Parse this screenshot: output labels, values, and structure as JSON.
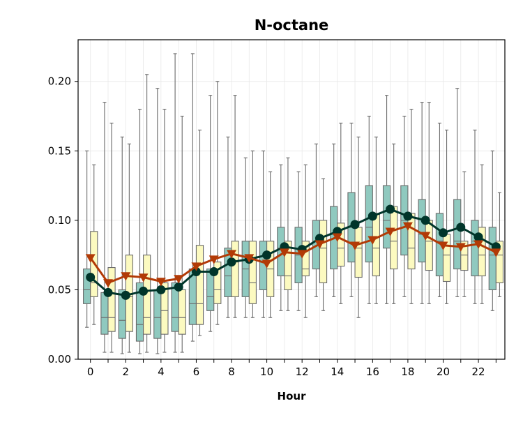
{
  "chart_data": {
    "type": "box",
    "title": "N-octane",
    "xlabel": "Hour",
    "ylabel": "",
    "ylim": [
      0.0,
      0.23
    ],
    "xlim": [
      -0.7,
      23.5
    ],
    "xticks": [
      0,
      2,
      4,
      6,
      8,
      10,
      12,
      14,
      16,
      18,
      20,
      22
    ],
    "xtick_labels": [
      "0",
      "2",
      "4",
      "6",
      "8",
      "10",
      "12",
      "14",
      "16",
      "18",
      "20",
      "22"
    ],
    "yticks": [
      0.0,
      0.05,
      0.1,
      0.15,
      0.2
    ],
    "ytick_labels": [
      "0.00",
      "0.05",
      "0.10",
      "0.15",
      "0.20"
    ],
    "grid": true,
    "colors": {
      "box_a_fill": "#8fc9bf",
      "box_b_fill": "#fcfac0",
      "box_edge": "#6b6b6b",
      "line_a": "#00352a",
      "line_b": "#b23a06",
      "grid": "#e8e8e8"
    },
    "hours": [
      0,
      1,
      2,
      3,
      4,
      5,
      6,
      7,
      8,
      9,
      10,
      11,
      12,
      13,
      14,
      15,
      16,
      17,
      18,
      19,
      20,
      21,
      22,
      23
    ],
    "box_series": [
      {
        "offset": -0.2,
        "color_key": "box_a_fill",
        "boxes": [
          {
            "wlo": 0.023,
            "q1": 0.04,
            "med": 0.05,
            "q3": 0.065,
            "whi": 0.15
          },
          {
            "wlo": 0.005,
            "q1": 0.018,
            "med": 0.03,
            "q3": 0.048,
            "whi": 0.185
          },
          {
            "wlo": 0.004,
            "q1": 0.015,
            "med": 0.028,
            "q3": 0.05,
            "whi": 0.16
          },
          {
            "wlo": 0.004,
            "q1": 0.013,
            "med": 0.025,
            "q3": 0.055,
            "whi": 0.18
          },
          {
            "wlo": 0.004,
            "q1": 0.015,
            "med": 0.03,
            "q3": 0.05,
            "whi": 0.195
          },
          {
            "wlo": 0.005,
            "q1": 0.02,
            "med": 0.03,
            "q3": 0.055,
            "whi": 0.22
          },
          {
            "wlo": 0.013,
            "q1": 0.025,
            "med": 0.04,
            "q3": 0.065,
            "whi": 0.22
          },
          {
            "wlo": 0.02,
            "q1": 0.035,
            "med": 0.045,
            "q3": 0.065,
            "whi": 0.19
          },
          {
            "wlo": 0.03,
            "q1": 0.045,
            "med": 0.06,
            "q3": 0.08,
            "whi": 0.16
          },
          {
            "wlo": 0.03,
            "q1": 0.045,
            "med": 0.065,
            "q3": 0.085,
            "whi": 0.145
          },
          {
            "wlo": 0.03,
            "q1": 0.05,
            "med": 0.07,
            "q3": 0.085,
            "whi": 0.15
          },
          {
            "wlo": 0.035,
            "q1": 0.06,
            "med": 0.08,
            "q3": 0.095,
            "whi": 0.14
          },
          {
            "wlo": 0.035,
            "q1": 0.055,
            "med": 0.075,
            "q3": 0.095,
            "whi": 0.135
          },
          {
            "wlo": 0.045,
            "q1": 0.065,
            "med": 0.085,
            "q3": 0.1,
            "whi": 0.155
          },
          {
            "wlo": 0.045,
            "q1": 0.065,
            "med": 0.09,
            "q3": 0.11,
            "whi": 0.155
          },
          {
            "wlo": 0.045,
            "q1": 0.07,
            "med": 0.095,
            "q3": 0.12,
            "whi": 0.17
          },
          {
            "wlo": 0.04,
            "q1": 0.07,
            "med": 0.095,
            "q3": 0.125,
            "whi": 0.175
          },
          {
            "wlo": 0.04,
            "q1": 0.08,
            "med": 0.1,
            "q3": 0.125,
            "whi": 0.19
          },
          {
            "wlo": 0.045,
            "q1": 0.075,
            "med": 0.1,
            "q3": 0.125,
            "whi": 0.175
          },
          {
            "wlo": 0.04,
            "q1": 0.07,
            "med": 0.09,
            "q3": 0.115,
            "whi": 0.185
          },
          {
            "wlo": 0.045,
            "q1": 0.06,
            "med": 0.085,
            "q3": 0.105,
            "whi": 0.17
          },
          {
            "wlo": 0.045,
            "q1": 0.065,
            "med": 0.085,
            "q3": 0.115,
            "whi": 0.195
          },
          {
            "wlo": 0.04,
            "q1": 0.06,
            "med": 0.085,
            "q3": 0.1,
            "whi": 0.165
          },
          {
            "wlo": 0.035,
            "q1": 0.05,
            "med": 0.075,
            "q3": 0.095,
            "whi": 0.15
          }
        ]
      },
      {
        "offset": 0.2,
        "color_key": "box_b_fill",
        "boxes": [
          {
            "wlo": 0.025,
            "q1": 0.045,
            "med": 0.055,
            "q3": 0.092,
            "whi": 0.14
          },
          {
            "wlo": 0.005,
            "q1": 0.02,
            "med": 0.03,
            "q3": 0.066,
            "whi": 0.17
          },
          {
            "wlo": 0.005,
            "q1": 0.02,
            "med": 0.045,
            "q3": 0.075,
            "whi": 0.155
          },
          {
            "wlo": 0.005,
            "q1": 0.018,
            "med": 0.03,
            "q3": 0.075,
            "whi": 0.205
          },
          {
            "wlo": 0.005,
            "q1": 0.018,
            "med": 0.035,
            "q3": 0.055,
            "whi": 0.18
          },
          {
            "wlo": 0.005,
            "q1": 0.018,
            "med": 0.03,
            "q3": 0.05,
            "whi": 0.175
          },
          {
            "wlo": 0.017,
            "q1": 0.025,
            "med": 0.04,
            "q3": 0.082,
            "whi": 0.165
          },
          {
            "wlo": 0.025,
            "q1": 0.04,
            "med": 0.05,
            "q3": 0.07,
            "whi": 0.2
          },
          {
            "wlo": 0.03,
            "q1": 0.045,
            "med": 0.07,
            "q3": 0.085,
            "whi": 0.19
          },
          {
            "wlo": 0.03,
            "q1": 0.04,
            "med": 0.055,
            "q3": 0.085,
            "whi": 0.15
          },
          {
            "wlo": 0.03,
            "q1": 0.045,
            "med": 0.065,
            "q3": 0.085,
            "whi": 0.135
          },
          {
            "wlo": 0.035,
            "q1": 0.05,
            "med": 0.06,
            "q3": 0.085,
            "whi": 0.145
          },
          {
            "wlo": 0.03,
            "q1": 0.06,
            "med": 0.065,
            "q3": 0.085,
            "whi": 0.14
          },
          {
            "wlo": 0.035,
            "q1": 0.055,
            "med": 0.08,
            "q3": 0.1,
            "whi": 0.13
          },
          {
            "wlo": 0.04,
            "q1": 0.067,
            "med": 0.08,
            "q3": 0.098,
            "whi": 0.17
          },
          {
            "wlo": 0.03,
            "q1": 0.059,
            "med": 0.08,
            "q3": 0.095,
            "whi": 0.16
          },
          {
            "wlo": 0.04,
            "q1": 0.06,
            "med": 0.08,
            "q3": 0.105,
            "whi": 0.16
          },
          {
            "wlo": 0.04,
            "q1": 0.065,
            "med": 0.085,
            "q3": 0.11,
            "whi": 0.155
          },
          {
            "wlo": 0.04,
            "q1": 0.065,
            "med": 0.08,
            "q3": 0.105,
            "whi": 0.18
          },
          {
            "wlo": 0.04,
            "q1": 0.064,
            "med": 0.085,
            "q3": 0.1,
            "whi": 0.185
          },
          {
            "wlo": 0.04,
            "q1": 0.056,
            "med": 0.075,
            "q3": 0.09,
            "whi": 0.165
          },
          {
            "wlo": 0.045,
            "q1": 0.064,
            "med": 0.075,
            "q3": 0.085,
            "whi": 0.135
          },
          {
            "wlo": 0.04,
            "q1": 0.06,
            "med": 0.075,
            "q3": 0.095,
            "whi": 0.14
          },
          {
            "wlo": 0.045,
            "q1": 0.055,
            "med": 0.075,
            "q3": 0.085,
            "whi": 0.12
          }
        ]
      }
    ],
    "line_series": [
      {
        "color_key": "line_a",
        "marker": "circle",
        "values": [
          0.059,
          0.048,
          0.046,
          0.049,
          0.05,
          0.052,
          0.063,
          0.063,
          0.07,
          0.072,
          0.075,
          0.081,
          0.079,
          0.087,
          0.092,
          0.097,
          0.103,
          0.108,
          0.103,
          0.1,
          0.091,
          0.095,
          0.088,
          0.081
        ]
      },
      {
        "color_key": "line_b",
        "marker": "triangle-down",
        "values": [
          0.073,
          0.055,
          0.06,
          0.059,
          0.056,
          0.058,
          0.067,
          0.072,
          0.076,
          0.073,
          0.069,
          0.077,
          0.076,
          0.083,
          0.088,
          0.082,
          0.086,
          0.092,
          0.096,
          0.089,
          0.082,
          0.081,
          0.083,
          0.077
        ]
      }
    ]
  }
}
